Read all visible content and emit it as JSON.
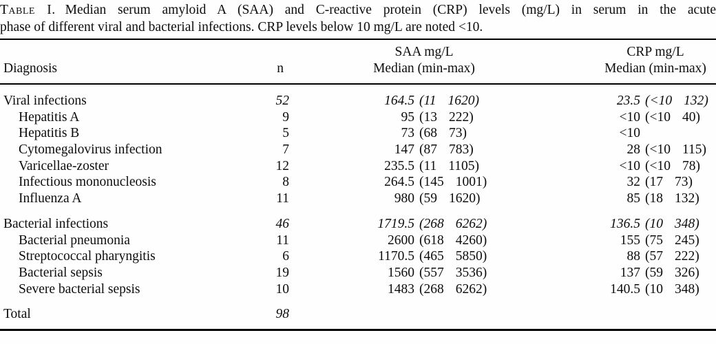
{
  "caption": {
    "label": "Table I.",
    "line1_rest": "Median serum amyloid A (SAA) and C-reactive protein (CRP) levels (mg/L) in serum in the acute",
    "line2": "phase of different viral and bacterial infections. CRP levels below 10 mg/L are noted <10."
  },
  "header": {
    "diagnosis": "Diagnosis",
    "n": "n",
    "saa_unit": "SAA mg/L",
    "saa_stat": "Median (min-max)",
    "crp_unit": "CRP mg/L",
    "crp_stat": "Median (min-max)"
  },
  "rows": [
    {
      "label": "Viral infections",
      "group": true,
      "italic": true,
      "gap_before": false,
      "n": "52",
      "saa": {
        "median": "164.5",
        "min": "11",
        "max": "1620"
      },
      "crp": {
        "median": "23.5",
        "min": "<10",
        "max": "132"
      }
    },
    {
      "label": "Hepatitis A",
      "group": false,
      "italic": false,
      "gap_before": false,
      "n": "9",
      "saa": {
        "median": "95",
        "min": "13",
        "max": "222"
      },
      "crp": {
        "median": "<10",
        "min": "<10",
        "max": "40"
      }
    },
    {
      "label": "Hepatitis B",
      "group": false,
      "italic": false,
      "gap_before": false,
      "n": "5",
      "saa": {
        "median": "73",
        "min": "68",
        "max": "73"
      },
      "crp": {
        "median": "<10",
        "min": null,
        "max": null
      }
    },
    {
      "label": "Cytomegalovirus infection",
      "group": false,
      "italic": false,
      "gap_before": false,
      "n": "7",
      "saa": {
        "median": "147",
        "min": "87",
        "max": "783"
      },
      "crp": {
        "median": "28",
        "min": "<10",
        "max": "115"
      }
    },
    {
      "label": "Varicellae-zoster",
      "group": false,
      "italic": false,
      "gap_before": false,
      "n": "12",
      "saa": {
        "median": "235.5",
        "min": "11",
        "max": "1105"
      },
      "crp": {
        "median": "<10",
        "min": "<10",
        "max": "78"
      }
    },
    {
      "label": "Infectious mononucleosis",
      "group": false,
      "italic": false,
      "gap_before": false,
      "n": "8",
      "saa": {
        "median": "264.5",
        "min": "145",
        "max": "1001"
      },
      "crp": {
        "median": "32",
        "min": "17",
        "max": "73"
      }
    },
    {
      "label": "Influenza A",
      "group": false,
      "italic": false,
      "gap_before": false,
      "n": "11",
      "saa": {
        "median": "980",
        "min": "59",
        "max": "1620"
      },
      "crp": {
        "median": "85",
        "min": "18",
        "max": "132"
      }
    },
    {
      "label": "Bacterial infections",
      "group": true,
      "italic": true,
      "gap_before": true,
      "n": "46",
      "saa": {
        "median": "1719.5",
        "min": "268",
        "max": "6262"
      },
      "crp": {
        "median": "136.5",
        "min": "10",
        "max": "348"
      }
    },
    {
      "label": "Bacterial pneumonia",
      "group": false,
      "italic": false,
      "gap_before": false,
      "n": "11",
      "saa": {
        "median": "2600",
        "min": "618",
        "max": "4260"
      },
      "crp": {
        "median": "155",
        "min": "75",
        "max": "245"
      }
    },
    {
      "label": "Streptococcal pharyngitis",
      "group": false,
      "italic": false,
      "gap_before": false,
      "n": "6",
      "saa": {
        "median": "1170.5",
        "min": "465",
        "max": "5850"
      },
      "crp": {
        "median": "88",
        "min": "57",
        "max": "222"
      }
    },
    {
      "label": "Bacterial sepsis",
      "group": false,
      "italic": false,
      "gap_before": false,
      "n": "19",
      "saa": {
        "median": "1560",
        "min": "557",
        "max": "3536"
      },
      "crp": {
        "median": "137",
        "min": "59",
        "max": "326"
      }
    },
    {
      "label": "Severe bacterial sepsis",
      "group": false,
      "italic": false,
      "gap_before": false,
      "n": "10",
      "saa": {
        "median": "1483",
        "min": "268",
        "max": "6262"
      },
      "crp": {
        "median": "140.5",
        "min": "10",
        "max": "348"
      }
    },
    {
      "label": "Total",
      "group": true,
      "italic": true,
      "gap_before": true,
      "n": "98",
      "saa": null,
      "crp": null
    }
  ]
}
